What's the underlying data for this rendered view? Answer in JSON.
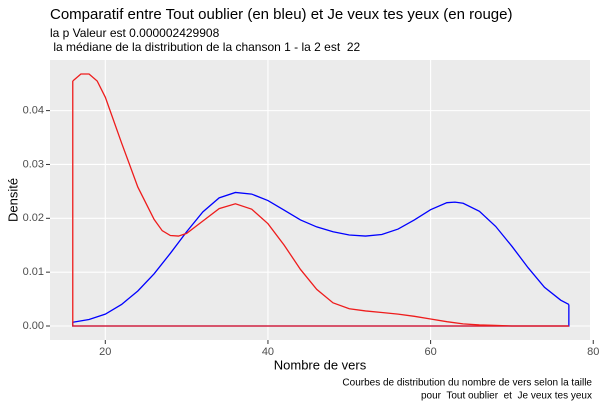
{
  "chart_data": {
    "type": "line",
    "title": "Comparatif entre  Tout oublier  (en bleu) et  Je veux tes yeux  (en rouge)",
    "subtitle": [
      "la p Valeur est  0.000002429908",
      " la médiane de la distribution de la chanson 1 - la 2 est  22"
    ],
    "caption": [
      "Courbes de distribution du nombre de vers selon la taille",
      "pour  Tout oublier  et  Je veux tes yeux"
    ],
    "x_label": "Nombre de vers",
    "y_label": "Densité",
    "xlim": [
      13.2,
      79.6
    ],
    "ylim": [
      -0.0026,
      0.0494
    ],
    "xticks": [
      20,
      40,
      60,
      80
    ],
    "yticks": [
      {
        "value": 0,
        "label": "0.00"
      },
      {
        "value": 0.01,
        "label": "0.01"
      },
      {
        "value": 0.02,
        "label": "0.02"
      },
      {
        "value": 0.03,
        "label": "0.03"
      },
      {
        "value": 0.04,
        "label": "0.04"
      }
    ],
    "grid": true,
    "series": [
      {
        "color": "#0000ff",
        "x": [
          16,
          18,
          20,
          22,
          24,
          26,
          28,
          30,
          32,
          34,
          36,
          38,
          40,
          42,
          44,
          46,
          48,
          50,
          52,
          54,
          56,
          58,
          60,
          62,
          63,
          64,
          66,
          68,
          70,
          72,
          74,
          76,
          77
        ],
        "values": [
          0.0007,
          0.0012,
          0.0022,
          0.004,
          0.0065,
          0.0097,
          0.0135,
          0.0175,
          0.0212,
          0.0238,
          0.0248,
          0.0245,
          0.0233,
          0.0215,
          0.0197,
          0.0184,
          0.0175,
          0.0169,
          0.0167,
          0.017,
          0.018,
          0.0197,
          0.0216,
          0.0229,
          0.023,
          0.0228,
          0.0213,
          0.0185,
          0.0148,
          0.0108,
          0.0072,
          0.0048,
          0.004
        ]
      },
      {
        "color": "#ee1c1c",
        "x": [
          16,
          17,
          18,
          19,
          20,
          22,
          24,
          26,
          27,
          28,
          29,
          30,
          32,
          34,
          36,
          38,
          40,
          42,
          44,
          46,
          48,
          50,
          52,
          54,
          56,
          58,
          60,
          62,
          64,
          66,
          68,
          70,
          77
        ],
        "values": [
          0.0455,
          0.0468,
          0.0468,
          0.0455,
          0.0425,
          0.034,
          0.0258,
          0.0198,
          0.0177,
          0.0168,
          0.0167,
          0.0172,
          0.0195,
          0.0218,
          0.0227,
          0.0217,
          0.019,
          0.015,
          0.0105,
          0.0068,
          0.0043,
          0.0032,
          0.0028,
          0.0025,
          0.0022,
          0.0018,
          0.0013,
          0.0008,
          0.0004,
          0.0002,
          0.0001,
          0,
          0
        ]
      }
    ]
  }
}
